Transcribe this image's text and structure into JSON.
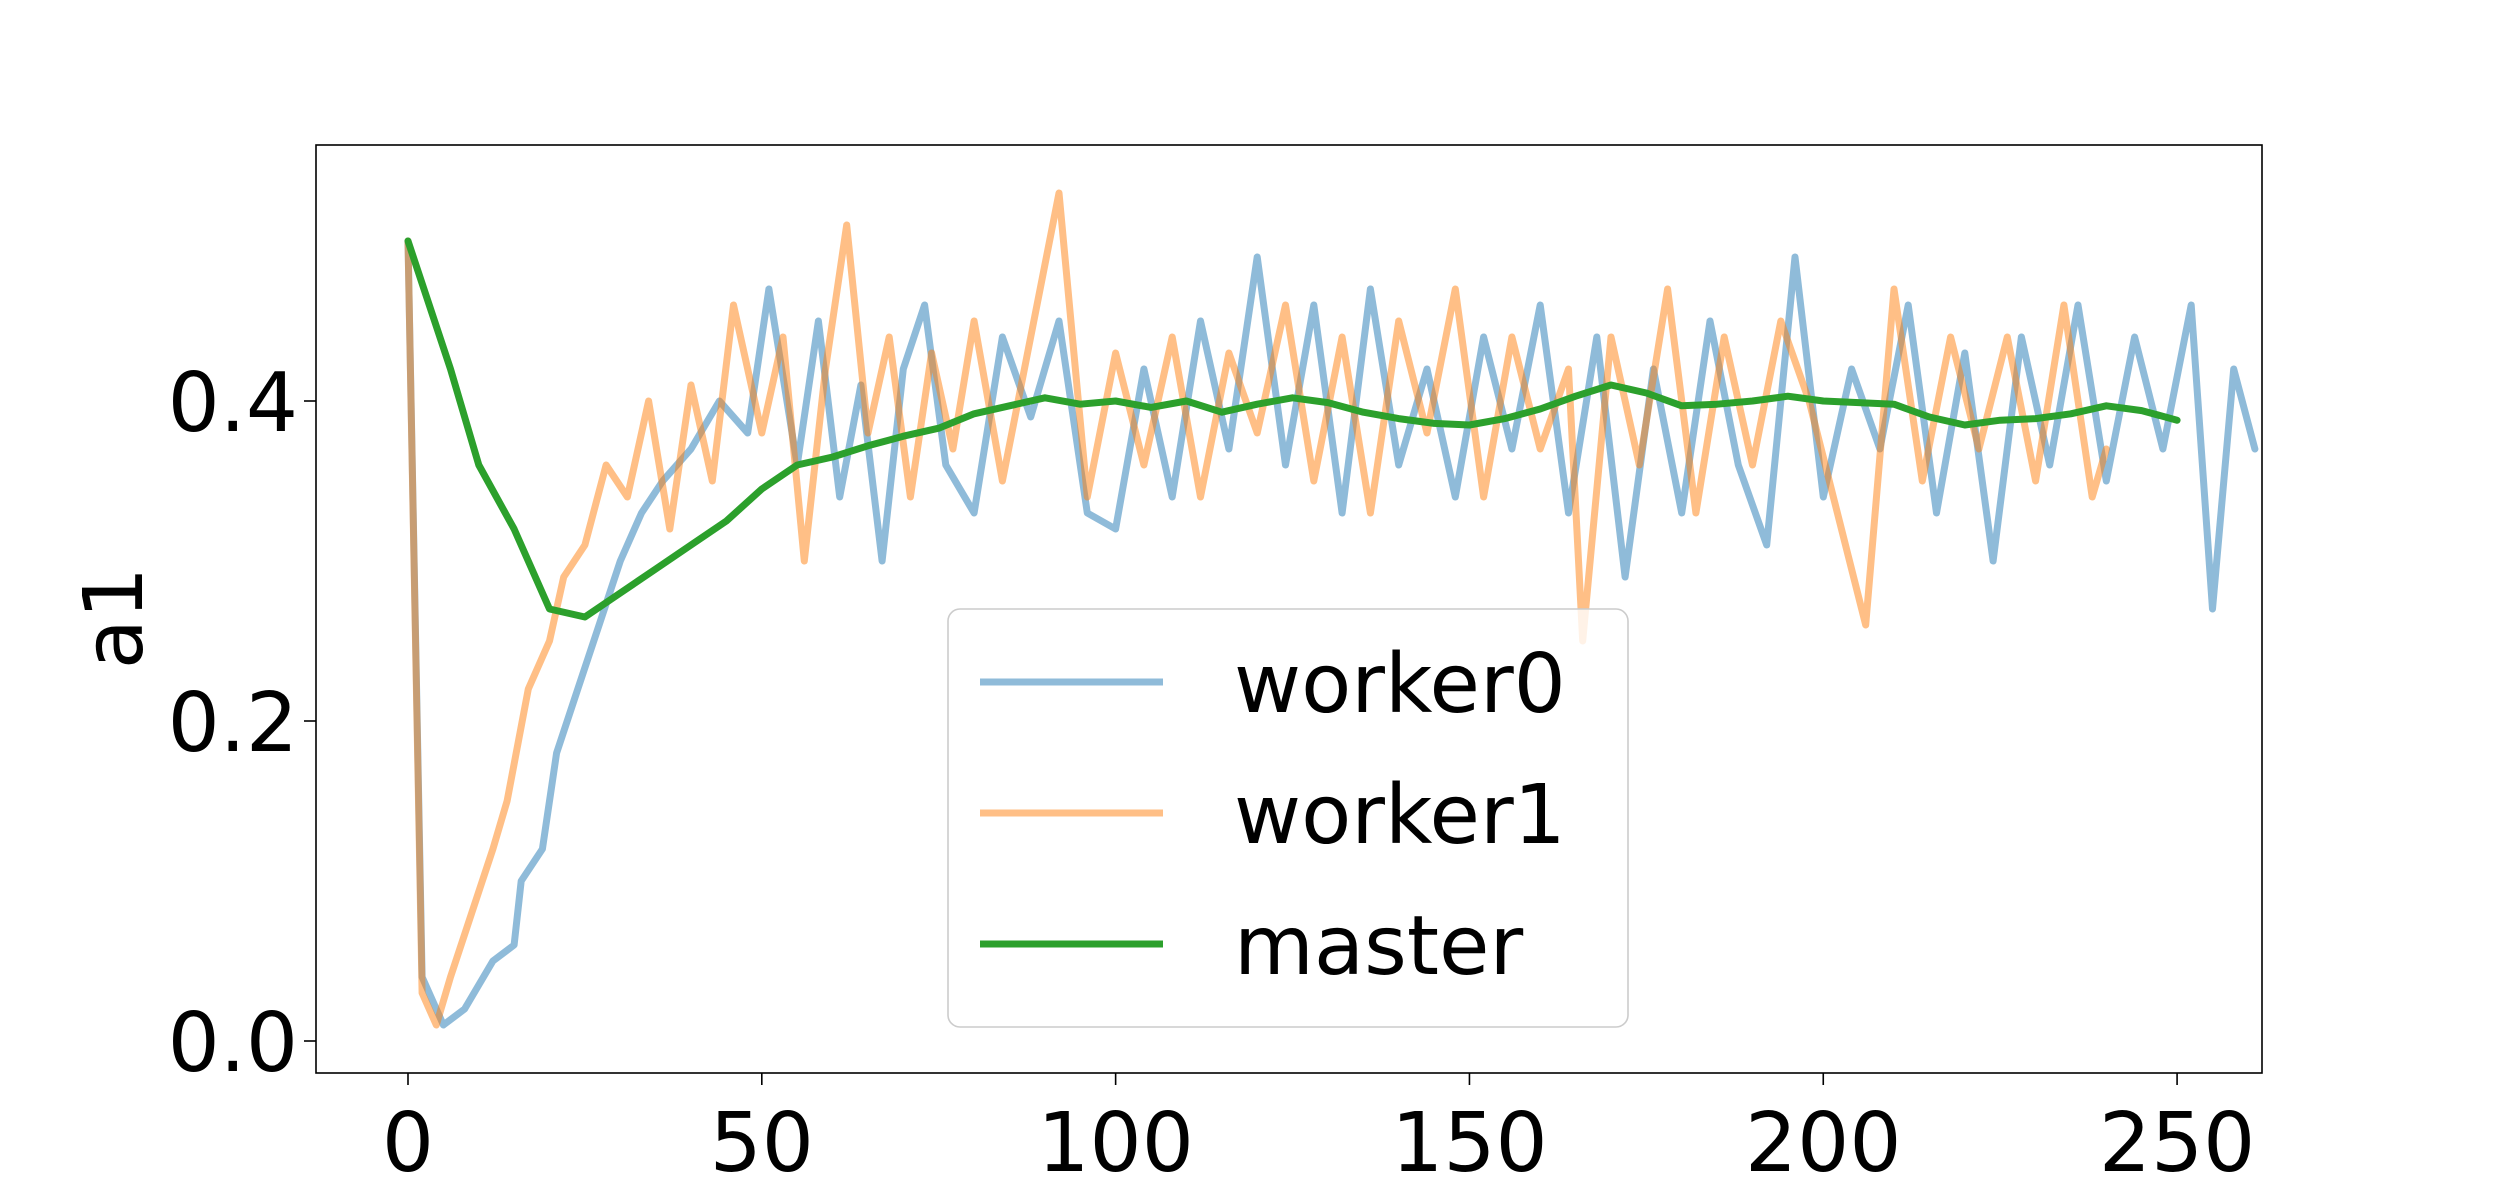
{
  "chart_data": {
    "type": "line",
    "title": "",
    "xlabel": "",
    "ylabel": "a1",
    "xlim": [
      -13,
      262
    ],
    "ylim": [
      -0.02,
      0.56
    ],
    "x_ticks": [
      0,
      50,
      100,
      150,
      200,
      250
    ],
    "x_tick_labels": [
      "0",
      "50",
      "100",
      "150",
      "200",
      "250"
    ],
    "y_ticks": [
      0.0,
      0.2,
      0.4
    ],
    "y_tick_labels": [
      "0.0",
      "0.2",
      "0.4"
    ],
    "grid": false,
    "legend": {
      "placement": "lower-center",
      "entries": [
        "worker0",
        "worker1",
        "master"
      ]
    },
    "series": [
      {
        "name": "worker0",
        "color": "#1f77b4",
        "alpha": 0.5,
        "x": [
          0,
          2,
          5,
          8,
          12,
          15,
          16,
          19,
          21,
          24,
          27,
          30,
          33,
          36,
          40,
          44,
          48,
          51,
          55,
          58,
          61,
          64,
          67,
          70,
          73,
          76,
          80,
          84,
          88,
          92,
          96,
          100,
          104,
          108,
          112,
          116,
          120,
          124,
          128,
          132,
          136,
          140,
          144,
          148,
          152,
          156,
          160,
          164,
          168,
          172,
          176,
          180,
          184,
          188,
          192,
          196,
          200,
          204,
          208,
          212,
          216,
          220,
          224,
          228,
          232,
          236,
          240,
          244,
          248,
          252,
          255,
          258,
          261
        ],
        "y": [
          0.5,
          0.04,
          0.01,
          0.02,
          0.05,
          0.06,
          0.1,
          0.12,
          0.18,
          0.22,
          0.26,
          0.3,
          0.33,
          0.35,
          0.37,
          0.4,
          0.38,
          0.47,
          0.36,
          0.45,
          0.34,
          0.41,
          0.3,
          0.42,
          0.46,
          0.36,
          0.33,
          0.44,
          0.39,
          0.45,
          0.33,
          0.32,
          0.42,
          0.34,
          0.45,
          0.37,
          0.49,
          0.36,
          0.46,
          0.33,
          0.47,
          0.36,
          0.42,
          0.34,
          0.44,
          0.37,
          0.46,
          0.33,
          0.44,
          0.29,
          0.42,
          0.33,
          0.45,
          0.36,
          0.31,
          0.49,
          0.34,
          0.42,
          0.37,
          0.46,
          0.33,
          0.43,
          0.3,
          0.44,
          0.36,
          0.46,
          0.35,
          0.44,
          0.37,
          0.46,
          0.27,
          0.42,
          0.37
        ]
      },
      {
        "name": "worker1",
        "color": "#ff7f0e",
        "alpha": 0.5,
        "x": [
          0,
          2,
          4,
          6,
          9,
          12,
          14,
          17,
          20,
          22,
          25,
          28,
          31,
          34,
          37,
          40,
          43,
          46,
          50,
          53,
          56,
          59,
          62,
          65,
          68,
          71,
          74,
          77,
          80,
          84,
          88,
          92,
          96,
          100,
          104,
          108,
          112,
          116,
          120,
          124,
          128,
          132,
          136,
          140,
          144,
          148,
          152,
          156,
          160,
          164,
          166,
          170,
          174,
          178,
          182,
          186,
          190,
          194,
          198,
          202,
          206,
          210,
          214,
          218,
          222,
          226,
          230,
          234,
          238,
          240
        ],
        "y": [
          0.5,
          0.03,
          0.01,
          0.04,
          0.08,
          0.12,
          0.15,
          0.22,
          0.25,
          0.29,
          0.31,
          0.36,
          0.34,
          0.4,
          0.32,
          0.41,
          0.35,
          0.46,
          0.38,
          0.44,
          0.3,
          0.42,
          0.51,
          0.38,
          0.44,
          0.34,
          0.43,
          0.37,
          0.45,
          0.35,
          0.44,
          0.53,
          0.34,
          0.43,
          0.36,
          0.44,
          0.34,
          0.43,
          0.38,
          0.46,
          0.35,
          0.44,
          0.33,
          0.45,
          0.38,
          0.47,
          0.34,
          0.44,
          0.37,
          0.42,
          0.25,
          0.44,
          0.36,
          0.47,
          0.33,
          0.44,
          0.36,
          0.45,
          0.4,
          0.33,
          0.26,
          0.47,
          0.35,
          0.44,
          0.37,
          0.44,
          0.35,
          0.46,
          0.34,
          0.37
        ]
      },
      {
        "name": "master",
        "color": "#2ca02c",
        "alpha": 1.0,
        "x": [
          0,
          6,
          10,
          15,
          20,
          25,
          30,
          35,
          40,
          45,
          50,
          55,
          60,
          65,
          70,
          75,
          80,
          85,
          90,
          95,
          100,
          105,
          110,
          115,
          120,
          125,
          130,
          135,
          140,
          145,
          150,
          155,
          160,
          165,
          170,
          175,
          180,
          185,
          190,
          195,
          200,
          205,
          210,
          215,
          220,
          225,
          230,
          235,
          240,
          245,
          250
        ],
        "y": [
          0.5,
          0.42,
          0.36,
          0.32,
          0.27,
          0.265,
          0.28,
          0.295,
          0.31,
          0.325,
          0.345,
          0.36,
          0.365,
          0.372,
          0.378,
          0.383,
          0.392,
          0.397,
          0.402,
          0.398,
          0.4,
          0.396,
          0.4,
          0.393,
          0.398,
          0.402,
          0.399,
          0.393,
          0.389,
          0.386,
          0.385,
          0.389,
          0.395,
          0.403,
          0.41,
          0.405,
          0.397,
          0.398,
          0.4,
          0.403,
          0.4,
          0.399,
          0.398,
          0.39,
          0.385,
          0.388,
          0.389,
          0.392,
          0.397,
          0.394,
          0.388
        ]
      }
    ]
  }
}
